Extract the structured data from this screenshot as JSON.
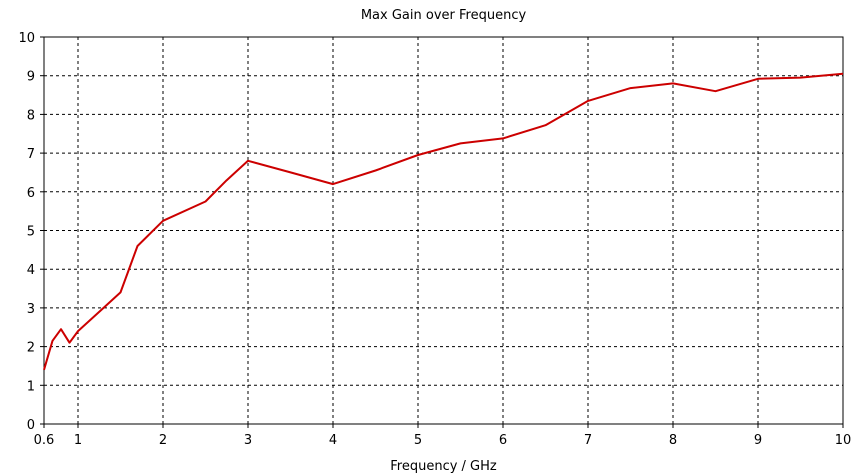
{
  "chart_data": {
    "type": "line",
    "title": "Max Gain over Frequency",
    "xlabel": "Frequency / GHz",
    "ylabel": "",
    "xlim": [
      0.6,
      10
    ],
    "ylim": [
      0,
      10
    ],
    "xticks": [
      "0.6",
      "1",
      "2",
      "3",
      "4",
      "5",
      "6",
      "7",
      "8",
      "9",
      "10"
    ],
    "xtick_values": [
      0.6,
      1,
      2,
      3,
      4,
      5,
      6,
      7,
      8,
      9,
      10
    ],
    "yticks": [
      "0",
      "1",
      "2",
      "3",
      "4",
      "5",
      "6",
      "7",
      "8",
      "9",
      "10"
    ],
    "ytick_values": [
      0,
      1,
      2,
      3,
      4,
      5,
      6,
      7,
      8,
      9,
      10
    ],
    "grid": true,
    "grid_style": "dashed",
    "line_color": "#cc0000",
    "series": [
      {
        "x": [
          0.6,
          0.7,
          0.8,
          0.9,
          1.0,
          1.25,
          1.5,
          1.7,
          2.0,
          2.5,
          2.75,
          3.0,
          3.5,
          4.0,
          4.5,
          5.0,
          5.5,
          6.0,
          6.5,
          7.0,
          7.5,
          8.0,
          8.5,
          9.0,
          9.5,
          10.0
        ],
        "y": [
          1.4,
          2.15,
          2.45,
          2.1,
          2.4,
          2.9,
          3.4,
          4.6,
          5.25,
          5.75,
          6.3,
          6.8,
          6.5,
          6.2,
          6.55,
          6.95,
          7.25,
          7.38,
          7.72,
          8.35,
          8.68,
          8.8,
          8.6,
          8.92,
          8.95,
          9.05
        ]
      }
    ]
  }
}
